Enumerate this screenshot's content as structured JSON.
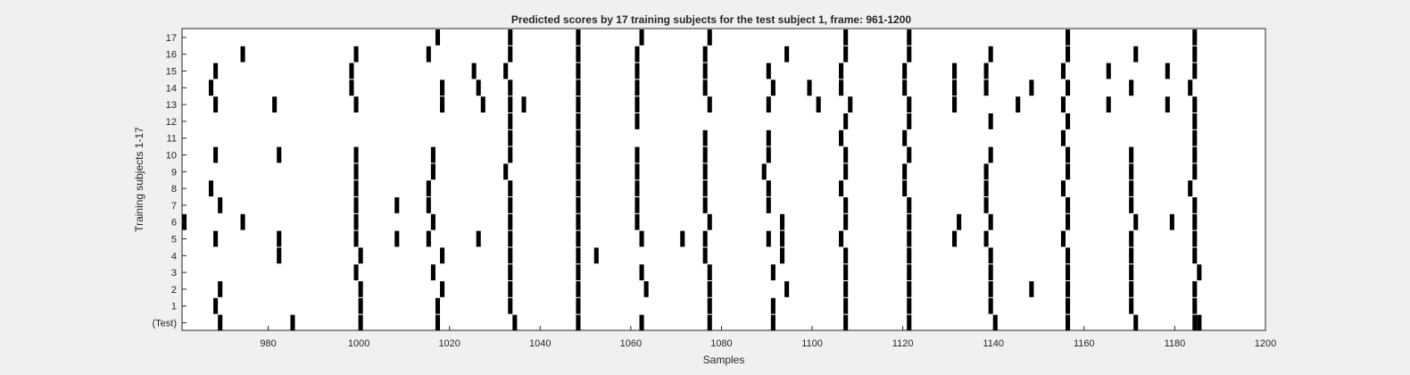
{
  "chart_data": {
    "type": "event-raster",
    "title": "Predicted scores by 17 training subjects for the test subject 1, frame: 961-1200",
    "xlabel": "Samples",
    "ylabel": "Training subjects 1-17",
    "xlim": [
      961,
      1200
    ],
    "xticks": [
      980,
      1000,
      1020,
      1040,
      1060,
      1080,
      1100,
      1120,
      1140,
      1160,
      1180,
      1200
    ],
    "rows": [
      "(Test)",
      "1",
      "2",
      "3",
      "4",
      "5",
      "6",
      "7",
      "8",
      "9",
      "10",
      "11",
      "12",
      "13",
      "14",
      "15",
      "16",
      "17"
    ],
    "grid": false,
    "events": {
      "(Test)": [
        969,
        985,
        1000,
        1017,
        1034,
        1048,
        1062,
        1077,
        1091,
        1107,
        1121,
        1140,
        1156,
        1171,
        1184,
        1185
      ],
      "1": [
        968,
        1000,
        1017,
        1033,
        1048,
        1077,
        1091,
        1107,
        1121,
        1139,
        1156,
        1170,
        1184
      ],
      "2": [
        969,
        1000,
        1018,
        1033,
        1048,
        1063,
        1077,
        1094,
        1107,
        1121,
        1139,
        1148,
        1156,
        1170,
        1184
      ],
      "3": [
        999,
        1016,
        1033,
        1048,
        1062,
        1077,
        1091,
        1107,
        1121,
        1139,
        1156,
        1170,
        1185
      ],
      "4": [
        982,
        1000,
        1018,
        1033,
        1048,
        1052,
        1076,
        1093,
        1107,
        1121,
        1139,
        1156,
        1170,
        1184
      ],
      "5": [
        968,
        982,
        999,
        1008,
        1015,
        1026,
        1033,
        1048,
        1062,
        1071,
        1076,
        1090,
        1093,
        1106,
        1121,
        1131,
        1138,
        1155,
        1170,
        1184
      ],
      "6": [
        961,
        974,
        999,
        1016,
        1033,
        1048,
        1061,
        1077,
        1093,
        1107,
        1121,
        1132,
        1139,
        1156,
        1171,
        1179,
        1184
      ],
      "7": [
        969,
        999,
        1008,
        1015,
        1033,
        1048,
        1061,
        1076,
        1090,
        1107,
        1121,
        1138,
        1156,
        1170,
        1184
      ],
      "8": [
        967,
        999,
        1015,
        1033,
        1048,
        1061,
        1076,
        1090,
        1106,
        1120,
        1138,
        1155,
        1170,
        1183
      ],
      "9": [
        999,
        1016,
        1032,
        1048,
        1061,
        1076,
        1089,
        1107,
        1120,
        1138,
        1156,
        1170,
        1184
      ],
      "10": [
        968,
        982,
        999,
        1016,
        1033,
        1048,
        1061,
        1076,
        1090,
        1107,
        1121,
        1139,
        1156,
        1170,
        1184
      ],
      "11": [
        1033,
        1048,
        1076,
        1090,
        1106,
        1120,
        1155,
        1184
      ],
      "12": [
        1033,
        1048,
        1061,
        1107,
        1121,
        1139,
        1156,
        1184
      ],
      "13": [
        968,
        981,
        999,
        1018,
        1027,
        1033,
        1036,
        1048,
        1061,
        1077,
        1090,
        1101,
        1108,
        1121,
        1131,
        1145,
        1155,
        1165,
        1178,
        1184
      ],
      "14": [
        967,
        998,
        1018,
        1026,
        1033,
        1048,
        1061,
        1076,
        1091,
        1099,
        1106,
        1120,
        1131,
        1138,
        1148,
        1156,
        1170,
        1183
      ],
      "15": [
        968,
        998,
        1025,
        1032,
        1048,
        1061,
        1076,
        1090,
        1106,
        1120,
        1131,
        1138,
        1155,
        1165,
        1178,
        1184
      ],
      "16": [
        974,
        999,
        1015,
        1033,
        1048,
        1061,
        1076,
        1094,
        1107,
        1121,
        1139,
        1156,
        1171,
        1184
      ],
      "17": [
        1017,
        1033,
        1048,
        1062,
        1077,
        1107,
        1121,
        1156,
        1184
      ]
    }
  }
}
